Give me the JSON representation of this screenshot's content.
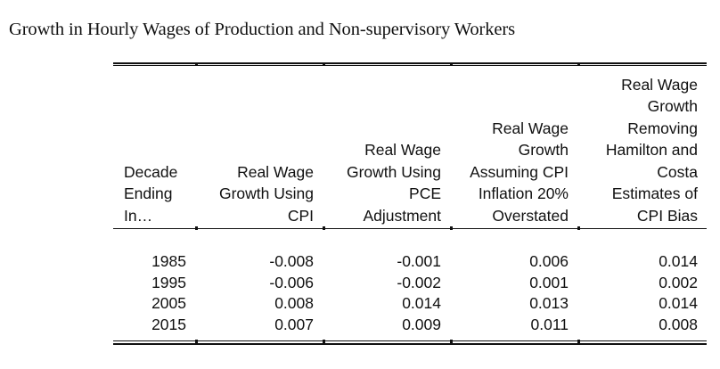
{
  "title": "Growth in Hourly Wages of Production and Non-supervisory Workers",
  "table": {
    "headers": [
      [
        "Decade",
        "Ending",
        "In…"
      ],
      [
        "Real Wage",
        "Growth Using",
        "CPI"
      ],
      [
        "Real Wage",
        "Growth Using",
        "PCE",
        "Adjustment"
      ],
      [
        "Real Wage",
        "Growth",
        "Assuming CPI",
        "Inflation 20%",
        "Overstated"
      ],
      [
        "Real Wage",
        "Growth",
        "Removing",
        "Hamilton and",
        "Costa",
        "Estimates of",
        "CPI Bias"
      ]
    ],
    "rows": [
      [
        "1985",
        "-0.008",
        "-0.001",
        "0.006",
        "0.014"
      ],
      [
        "1995",
        "-0.006",
        "-0.002",
        "0.001",
        "0.002"
      ],
      [
        "2005",
        "0.008",
        "0.014",
        "0.013",
        "0.014"
      ],
      [
        "2015",
        "0.007",
        "0.009",
        "0.011",
        "0.008"
      ]
    ]
  }
}
